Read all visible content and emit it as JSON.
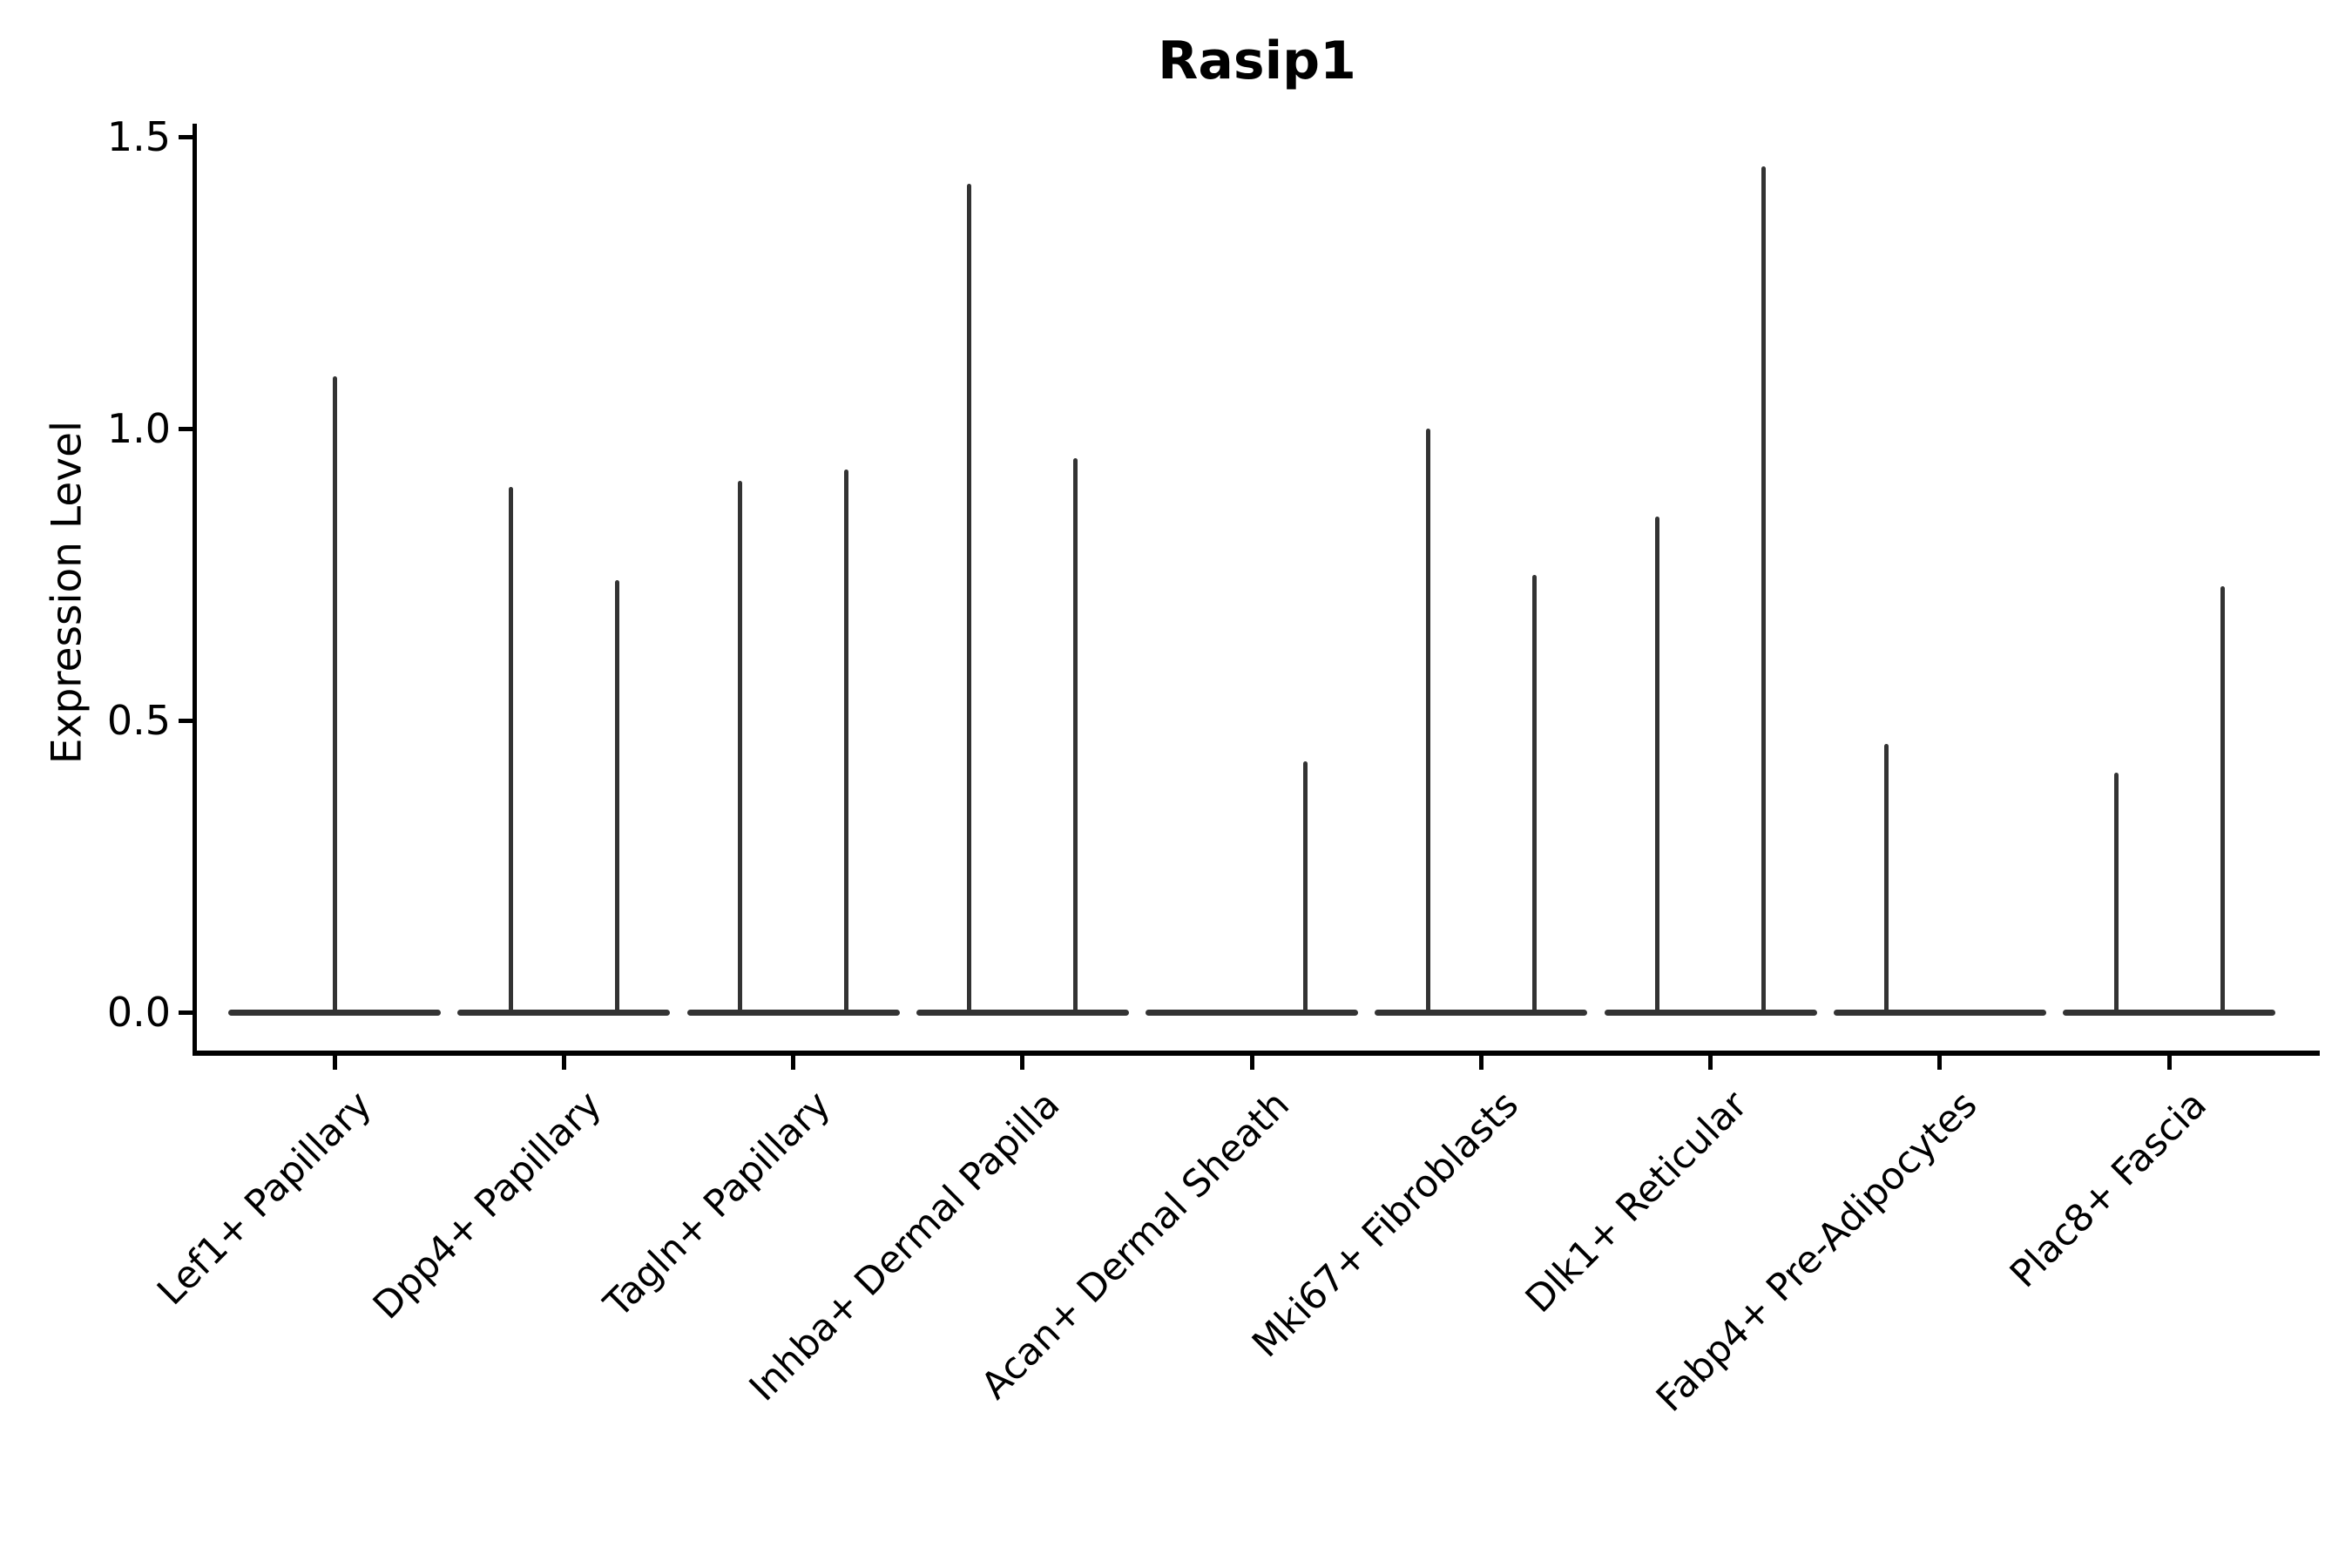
{
  "title": "Rasip1",
  "y_axis": {
    "label": "Expression Level",
    "ticks": [
      "0.0",
      "0.5",
      "1.0",
      "1.5"
    ],
    "tick_values": [
      0.0,
      0.5,
      1.0,
      1.5
    ]
  },
  "chart_data": {
    "type": "violin",
    "title": "Rasip1",
    "xlabel": "",
    "ylabel": "Expression Level",
    "ylim": [
      0,
      1.5
    ],
    "yticks": [
      0.0,
      0.5,
      1.0,
      1.5
    ],
    "categories": [
      "Lef1+ Papillary",
      "Dpp4+ Papillary",
      "Tagln+ Papillary",
      "Inhba+ Dermal Papilla",
      "Acan+ Dermal Sheath",
      "Mki67+ Fibroblasts",
      "Dlk1+ Reticular",
      "Fabp4+ Pre-Adipocytes",
      "Plac8+ Fascia"
    ],
    "series": [
      {
        "category": "Lef1+ Papillary",
        "violins": [
          {
            "position": "center",
            "max_expression": 1.09
          }
        ]
      },
      {
        "category": "Dpp4+ Papillary",
        "violins": [
          {
            "position": "left",
            "max_expression": 0.9
          },
          {
            "position": "right",
            "max_expression": 0.74
          }
        ]
      },
      {
        "category": "Tagln+ Papillary",
        "violins": [
          {
            "position": "left",
            "max_expression": 0.91
          },
          {
            "position": "right",
            "max_expression": 0.93
          }
        ]
      },
      {
        "category": "Inhba+ Dermal Papilla",
        "violins": [
          {
            "position": "left",
            "max_expression": 1.42
          },
          {
            "position": "right",
            "max_expression": 0.95
          }
        ]
      },
      {
        "category": "Acan+ Dermal Sheath",
        "violins": [
          {
            "position": "right",
            "max_expression": 0.43
          }
        ]
      },
      {
        "category": "Mki67+ Fibroblasts",
        "violins": [
          {
            "position": "left",
            "max_expression": 1.0
          },
          {
            "position": "right",
            "max_expression": 0.75
          }
        ]
      },
      {
        "category": "Dlk1+ Reticular",
        "violins": [
          {
            "position": "left",
            "max_expression": 0.85
          },
          {
            "position": "right",
            "max_expression": 1.45
          }
        ]
      },
      {
        "category": "Fabp4+ Pre-Adipocytes",
        "violins": [
          {
            "position": "left",
            "max_expression": 0.46
          }
        ]
      },
      {
        "category": "Plac8+ Fascia",
        "violins": [
          {
            "position": "left",
            "max_expression": 0.41
          },
          {
            "position": "right",
            "max_expression": 0.73
          }
        ]
      }
    ],
    "layout": {
      "legend": "none",
      "grid": false,
      "xticklabel_rotation": 45,
      "baseline_value": 0,
      "violin_color": "#333333"
    }
  }
}
